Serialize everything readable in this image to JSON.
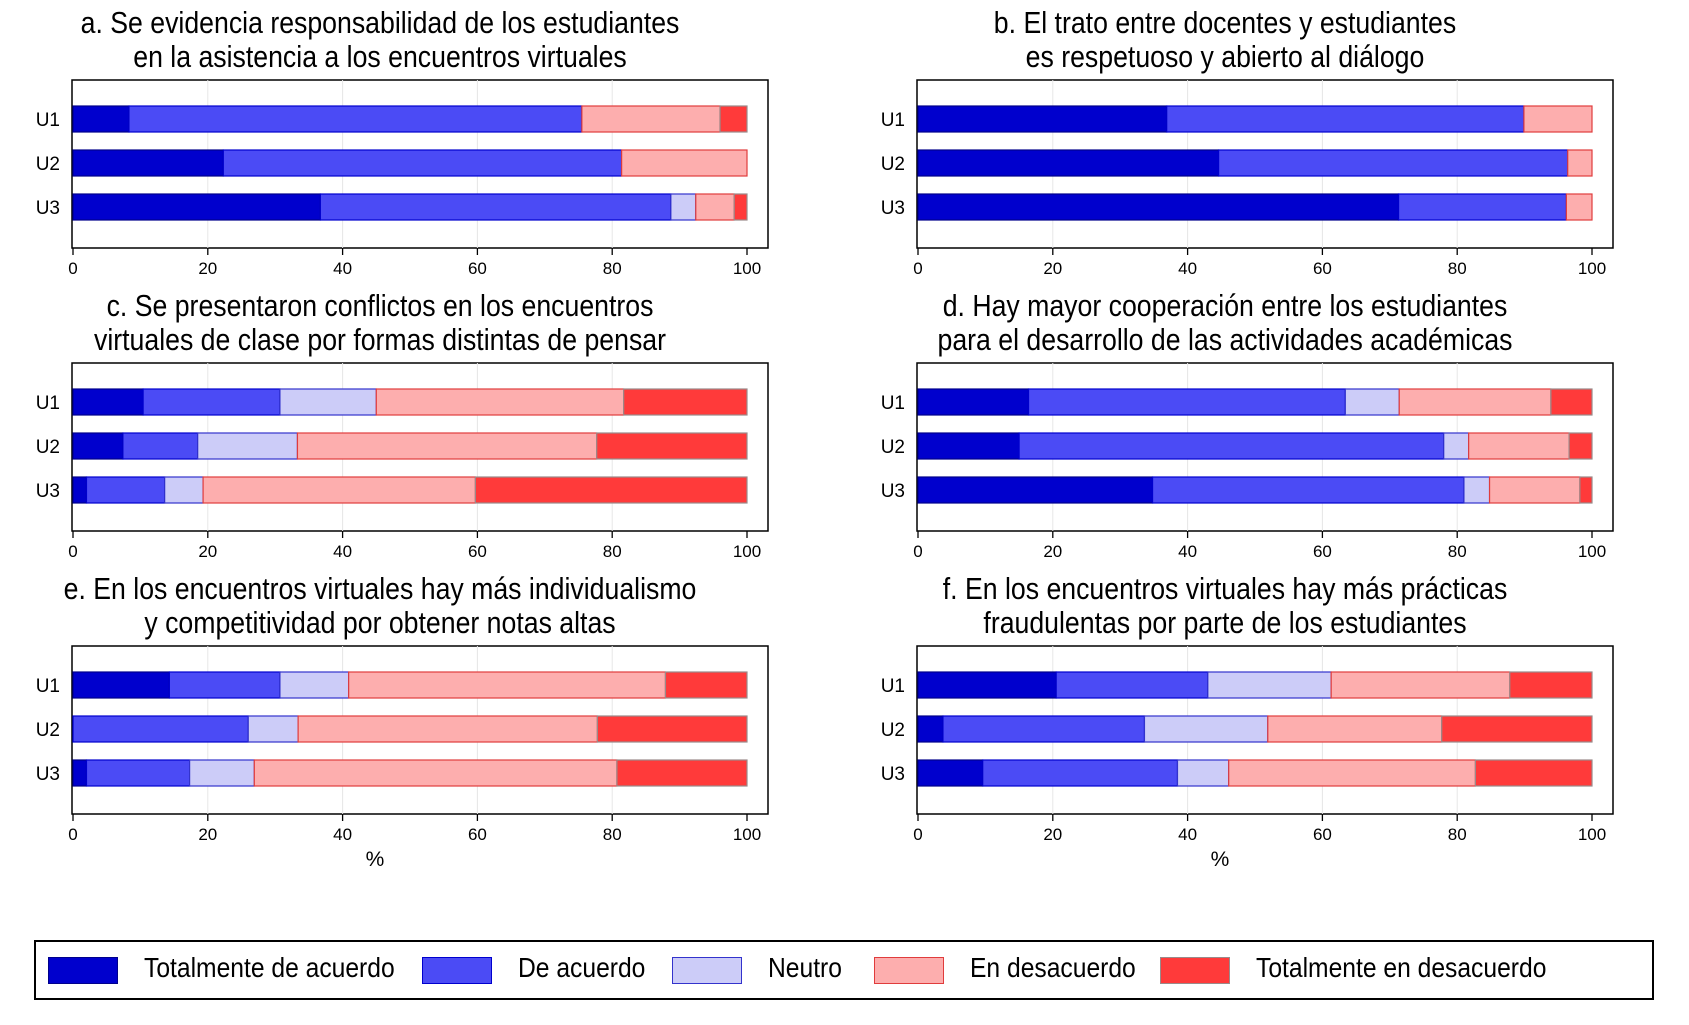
{
  "colors": {
    "Totalmente de acuerdo": {
      "fill": "#0000cd",
      "stroke": "#00008b"
    },
    "De acuerdo": {
      "fill": "#4b4bf5",
      "stroke": "#0000cd"
    },
    "Neutro": {
      "fill": "#ccccf8",
      "stroke": "#3333cc"
    },
    "En desacuerdo": {
      "fill": "#fdaeae",
      "stroke": "#e03c3c"
    },
    "Totalmente en desacuerdo": {
      "fill": "#ff3a3a",
      "stroke": "#9a8a8a"
    }
  },
  "legend": {
    "items": [
      "Totalmente de acuerdo",
      "De acuerdo",
      "Neutro",
      "En desacuerdo",
      "Totalmente en desacuerdo"
    ]
  },
  "chart_data": [
    {
      "type": "bar",
      "orientation": "horizontal",
      "stacked": true,
      "title_lines": [
        "a. Se evidencia responsabilidad de los estudiantes",
        "en la asistencia a los encuentros virtuales"
      ],
      "xlabel": "",
      "xlim": [
        0,
        100
      ],
      "xticks": [
        "0",
        "20",
        "40",
        "60",
        "80",
        "100"
      ],
      "categories": [
        "U1",
        "U2",
        "U3"
      ],
      "series": [
        {
          "name": "Totalmente de acuerdo",
          "values": [
            8.3,
            22.3,
            36.7
          ]
        },
        {
          "name": "De acuerdo",
          "values": [
            67.2,
            59.1,
            52.0
          ]
        },
        {
          "name": "Neutro",
          "values": [
            0,
            0,
            3.7
          ]
        },
        {
          "name": "En desacuerdo",
          "values": [
            20.5,
            18.6,
            5.7
          ]
        },
        {
          "name": "Totalmente en desacuerdo",
          "values": [
            4.0,
            0,
            1.9
          ]
        }
      ],
      "grid": true
    },
    {
      "type": "bar",
      "orientation": "horizontal",
      "stacked": true,
      "title_lines": [
        "b. El trato entre docentes y estudiantes",
        "es respetuoso y abierto al diálogo"
      ],
      "xlabel": "",
      "xlim": [
        0,
        100
      ],
      "xticks": [
        "0",
        "20",
        "40",
        "60",
        "80",
        "100"
      ],
      "categories": [
        "U1",
        "U2",
        "U3"
      ],
      "series": [
        {
          "name": "Totalmente de acuerdo",
          "values": [
            36.9,
            44.6,
            71.3
          ]
        },
        {
          "name": "De acuerdo",
          "values": [
            53.0,
            51.8,
            24.9
          ]
        },
        {
          "name": "Neutro",
          "values": [
            0,
            0,
            0
          ]
        },
        {
          "name": "En desacuerdo",
          "values": [
            10.1,
            3.6,
            3.8
          ]
        },
        {
          "name": "Totalmente en desacuerdo",
          "values": [
            0,
            0,
            0
          ]
        }
      ],
      "grid": true
    },
    {
      "type": "bar",
      "orientation": "horizontal",
      "stacked": true,
      "title_lines": [
        "c. Se presentaron conflictos en los encuentros",
        "virtuales de clase por formas distintas de pensar"
      ],
      "xlabel": "",
      "xlim": [
        0,
        100
      ],
      "xticks": [
        "0",
        "20",
        "40",
        "60",
        "80",
        "100"
      ],
      "categories": [
        "U1",
        "U2",
        "U3"
      ],
      "series": [
        {
          "name": "Totalmente de acuerdo",
          "values": [
            10.4,
            7.4,
            2.0
          ]
        },
        {
          "name": "De acuerdo",
          "values": [
            20.3,
            11.1,
            11.6
          ]
        },
        {
          "name": "Neutro",
          "values": [
            14.3,
            14.8,
            5.7
          ]
        },
        {
          "name": "En desacuerdo",
          "values": [
            36.7,
            44.4,
            40.4
          ]
        },
        {
          "name": "Totalmente en desacuerdo",
          "values": [
            18.3,
            22.3,
            40.3
          ]
        }
      ],
      "grid": true
    },
    {
      "type": "bar",
      "orientation": "horizontal",
      "stacked": true,
      "title_lines": [
        "d. Hay mayor cooperación entre los estudiantes",
        "para el desarrollo de las actividades académicas"
      ],
      "xlabel": "",
      "xlim": [
        0,
        100
      ],
      "xticks": [
        "0",
        "20",
        "40",
        "60",
        "80",
        "100"
      ],
      "categories": [
        "U1",
        "U2",
        "U3"
      ],
      "series": [
        {
          "name": "Totalmente de acuerdo",
          "values": [
            16.4,
            15.0,
            34.8
          ]
        },
        {
          "name": "De acuerdo",
          "values": [
            47.0,
            63.0,
            46.2
          ]
        },
        {
          "name": "Neutro",
          "values": [
            8.0,
            3.7,
            3.8
          ]
        },
        {
          "name": "En desacuerdo",
          "values": [
            22.5,
            14.9,
            13.4
          ]
        },
        {
          "name": "Totalmente en desacuerdo",
          "values": [
            6.1,
            3.4,
            1.8
          ]
        }
      ],
      "grid": true
    },
    {
      "type": "bar",
      "orientation": "horizontal",
      "stacked": true,
      "title_lines": [
        "e. En los encuentros virtuales hay más individualismo",
        "y competitividad por obtener notas altas"
      ],
      "xlabel": "%",
      "xlim": [
        0,
        100
      ],
      "xticks": [
        "0",
        "20",
        "40",
        "60",
        "80",
        "100"
      ],
      "categories": [
        "U1",
        "U2",
        "U3"
      ],
      "series": [
        {
          "name": "Totalmente de acuerdo",
          "values": [
            14.3,
            0,
            2.0
          ]
        },
        {
          "name": "De acuerdo",
          "values": [
            16.4,
            26.0,
            15.3
          ]
        },
        {
          "name": "Neutro",
          "values": [
            10.2,
            7.4,
            9.6
          ]
        },
        {
          "name": "En desacuerdo",
          "values": [
            47.0,
            44.4,
            53.8
          ]
        },
        {
          "name": "Totalmente en desacuerdo",
          "values": [
            12.1,
            22.2,
            19.3
          ]
        }
      ],
      "grid": true
    },
    {
      "type": "bar",
      "orientation": "horizontal",
      "stacked": true,
      "title_lines": [
        "f. En los encuentros virtuales hay más prácticas",
        "fraudulentas por parte de los estudiantes"
      ],
      "xlabel": "%",
      "xlim": [
        0,
        100
      ],
      "xticks": [
        "0",
        "20",
        "40",
        "60",
        "80",
        "100"
      ],
      "categories": [
        "U1",
        "U2",
        "U3"
      ],
      "series": [
        {
          "name": "Totalmente de acuerdo",
          "values": [
            20.5,
            3.7,
            9.6
          ]
        },
        {
          "name": "De acuerdo",
          "values": [
            22.5,
            29.9,
            28.9
          ]
        },
        {
          "name": "Neutro",
          "values": [
            18.3,
            18.3,
            7.6
          ]
        },
        {
          "name": "En desacuerdo",
          "values": [
            26.5,
            25.8,
            36.6
          ]
        },
        {
          "name": "Totalmente en desacuerdo",
          "values": [
            12.2,
            22.3,
            17.3
          ]
        }
      ],
      "grid": true
    }
  ]
}
